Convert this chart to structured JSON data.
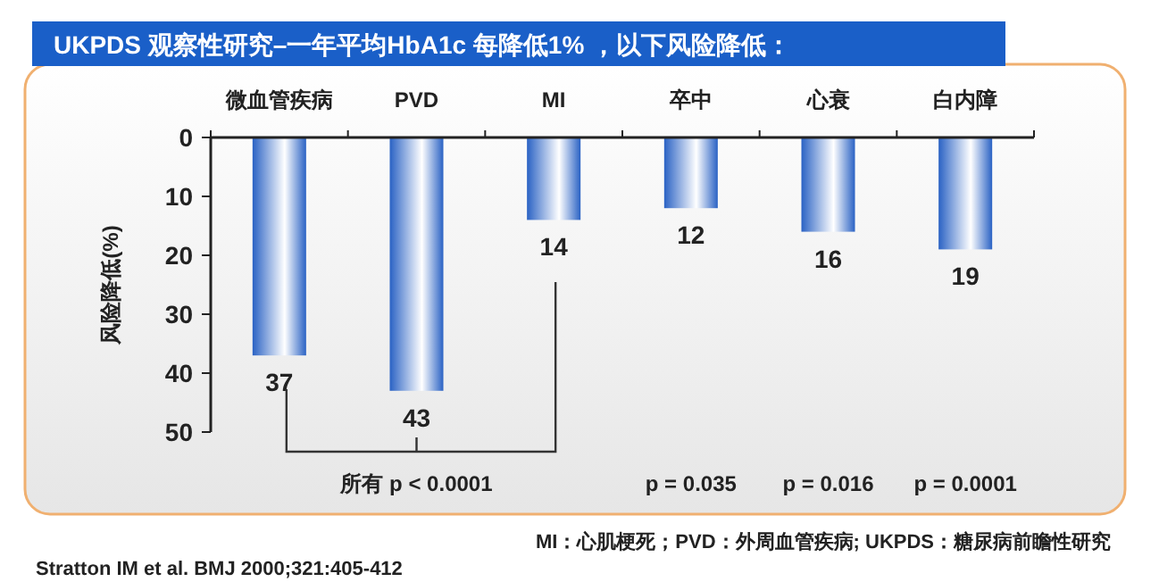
{
  "chart_data": {
    "type": "bar",
    "title": "UKPDS 观察性研究–一年平均HbA1c 每降低1% ，以下风险降低：",
    "ylabel": "风险降低(%)",
    "categories": [
      "微血管疾病",
      "PVD",
      "MI",
      "卒中",
      "心衰",
      "白内障"
    ],
    "values": [
      37,
      43,
      14,
      12,
      16,
      19
    ],
    "color": "#2a62c4",
    "ylim": [
      50,
      0
    ],
    "yticks": [
      0,
      10,
      20,
      30,
      40,
      50
    ],
    "data_labels": true,
    "grid": false,
    "annotations": [
      "所有 p < 0.0001",
      "p = 0.035",
      "p = 0.016",
      "p = 0.0001",
      "MI：心肌梗死；PVD：外周血管疾病; UKPDS：糖尿病前瞻性研究",
      "Stratton IM et al. BMJ 2000;321:405-412"
    ]
  }
}
